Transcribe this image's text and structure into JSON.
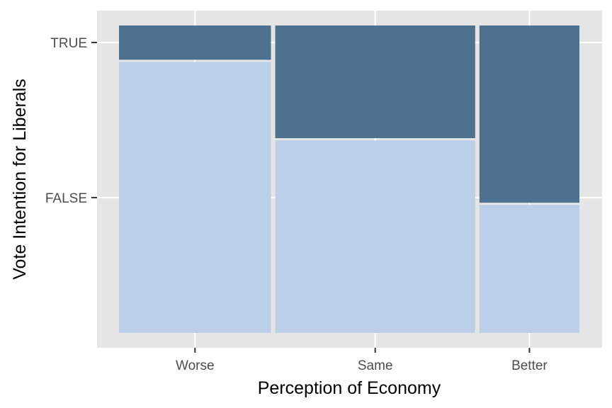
{
  "chart_data": {
    "type": "mosaic",
    "xlabel": "Perception of Economy",
    "ylabel": "Vote Intention for Liberals",
    "x_categories": [
      "Worse",
      "Same",
      "Better"
    ],
    "y_categories": [
      "FALSE",
      "TRUE"
    ],
    "column_widths": [
      0.38,
      0.5,
      0.25
    ],
    "true_fraction": [
      0.115,
      0.37,
      0.58
    ],
    "false_fraction": [
      0.885,
      0.63,
      0.42
    ],
    "grid": true,
    "legend": "none"
  },
  "colors": {
    "panel": "#E5E5E5",
    "grid": "#FFFFFF",
    "true_fill": "#4F7190",
    "false_fill": "#BCCFE9"
  }
}
